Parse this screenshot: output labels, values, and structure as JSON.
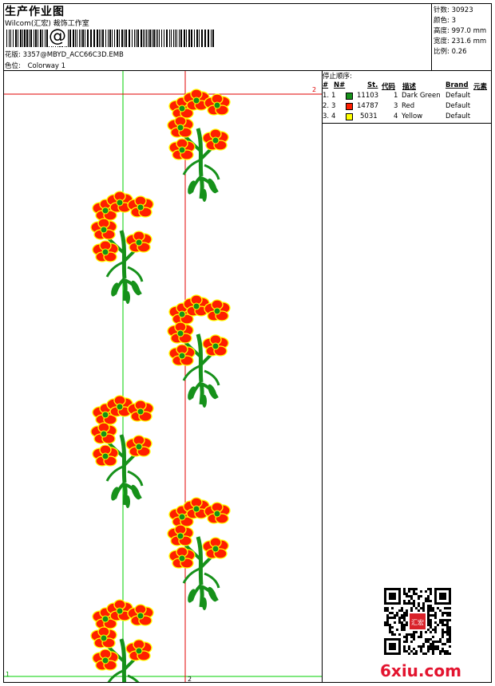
{
  "header": {
    "title": "生产作业图",
    "company": "Wilcom(汇宏) 裁饰工作室",
    "barcode_symbol": "@",
    "file_label": "花版:",
    "file_name": "3357@MBYD_ACC66C3D.EMB",
    "colorway_label": "色位:",
    "colorway_name": "Colorway 1"
  },
  "stats": [
    {
      "label": "针数:",
      "value": "30923"
    },
    {
      "label": "颜色:",
      "value": "3"
    },
    {
      "label": "高度:",
      "value": "997.0 mm"
    },
    {
      "label": "宽度:",
      "value": "231.6 mm"
    },
    {
      "label": "比例:",
      "value": "0.26"
    }
  ],
  "stop_sequence": {
    "heading": "停止顺序:",
    "columns": {
      "stop": "#",
      "needle": "N#",
      "stitches": "St.",
      "code": "代码",
      "description": "描述",
      "brand": "Brand",
      "element": "元素"
    },
    "rows": [
      {
        "stop": "1.",
        "needle": "1",
        "color": "#16911a",
        "stitches": "11103",
        "code": "1",
        "description": "Dark Green",
        "brand": "Default"
      },
      {
        "stop": "2.",
        "needle": "3",
        "color": "#ff1e00",
        "stitches": "14787",
        "code": "3",
        "description": "Red",
        "brand": "Default"
      },
      {
        "stop": "3.",
        "needle": "4",
        "color": "#ffff00",
        "stitches": "5031",
        "code": "4",
        "description": "Yellow",
        "brand": "Default"
      }
    ]
  },
  "design": {
    "guide_marks": {
      "top_right": "2",
      "bottom_left": "1",
      "bottom_center": "2"
    },
    "colors": {
      "stem": "#16911a",
      "petal": "#ff1e00",
      "petal_edge": "#ffff00",
      "center": "#16911a",
      "guide_green": "#00d000",
      "guide_red": "#e00000"
    }
  },
  "watermark": {
    "text": "6xiu.com",
    "stamp": "汇宏"
  }
}
